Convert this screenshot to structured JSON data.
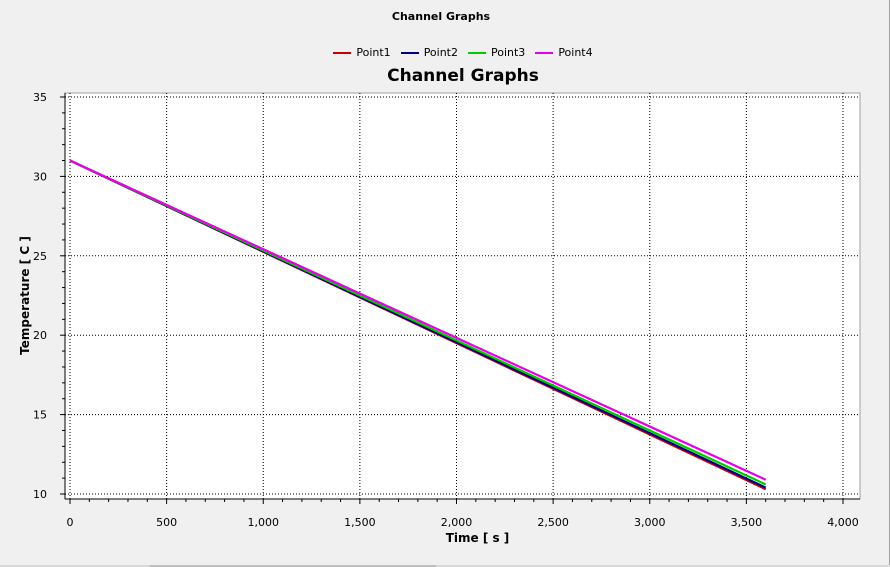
{
  "window_title": "Channel Graphs",
  "chart_data": {
    "type": "line",
    "title": "Channel Graphs",
    "xlabel": "Time [ s ]",
    "ylabel": "Temperature [ C ]",
    "xlim": [
      0,
      4000
    ],
    "ylim": [
      10,
      35
    ],
    "x_ticks": [
      0,
      500,
      1000,
      1500,
      2000,
      2500,
      3000,
      3500,
      4000
    ],
    "x_tick_labels": [
      "0",
      "500",
      "1,000",
      "1,500",
      "2,000",
      "2,500",
      "3,000",
      "3,500",
      "4,000"
    ],
    "y_ticks": [
      10,
      15,
      20,
      25,
      30,
      35
    ],
    "y_tick_labels": [
      "10",
      "15",
      "20",
      "25",
      "30",
      "35"
    ],
    "grid": true,
    "legend_position": "top-center",
    "series": [
      {
        "name": "Point1",
        "color": "#cc0000",
        "x": [
          0,
          3600
        ],
        "y": [
          31.0,
          10.3
        ]
      },
      {
        "name": "Point2",
        "color": "#000080",
        "x": [
          0,
          3600
        ],
        "y": [
          31.0,
          10.4
        ]
      },
      {
        "name": "Point3",
        "color": "#00cc00",
        "x": [
          0,
          3600
        ],
        "y": [
          31.0,
          10.6
        ]
      },
      {
        "name": "Point4",
        "color": "#e600e6",
        "x": [
          0,
          3600
        ],
        "y": [
          31.0,
          10.9
        ]
      }
    ]
  }
}
